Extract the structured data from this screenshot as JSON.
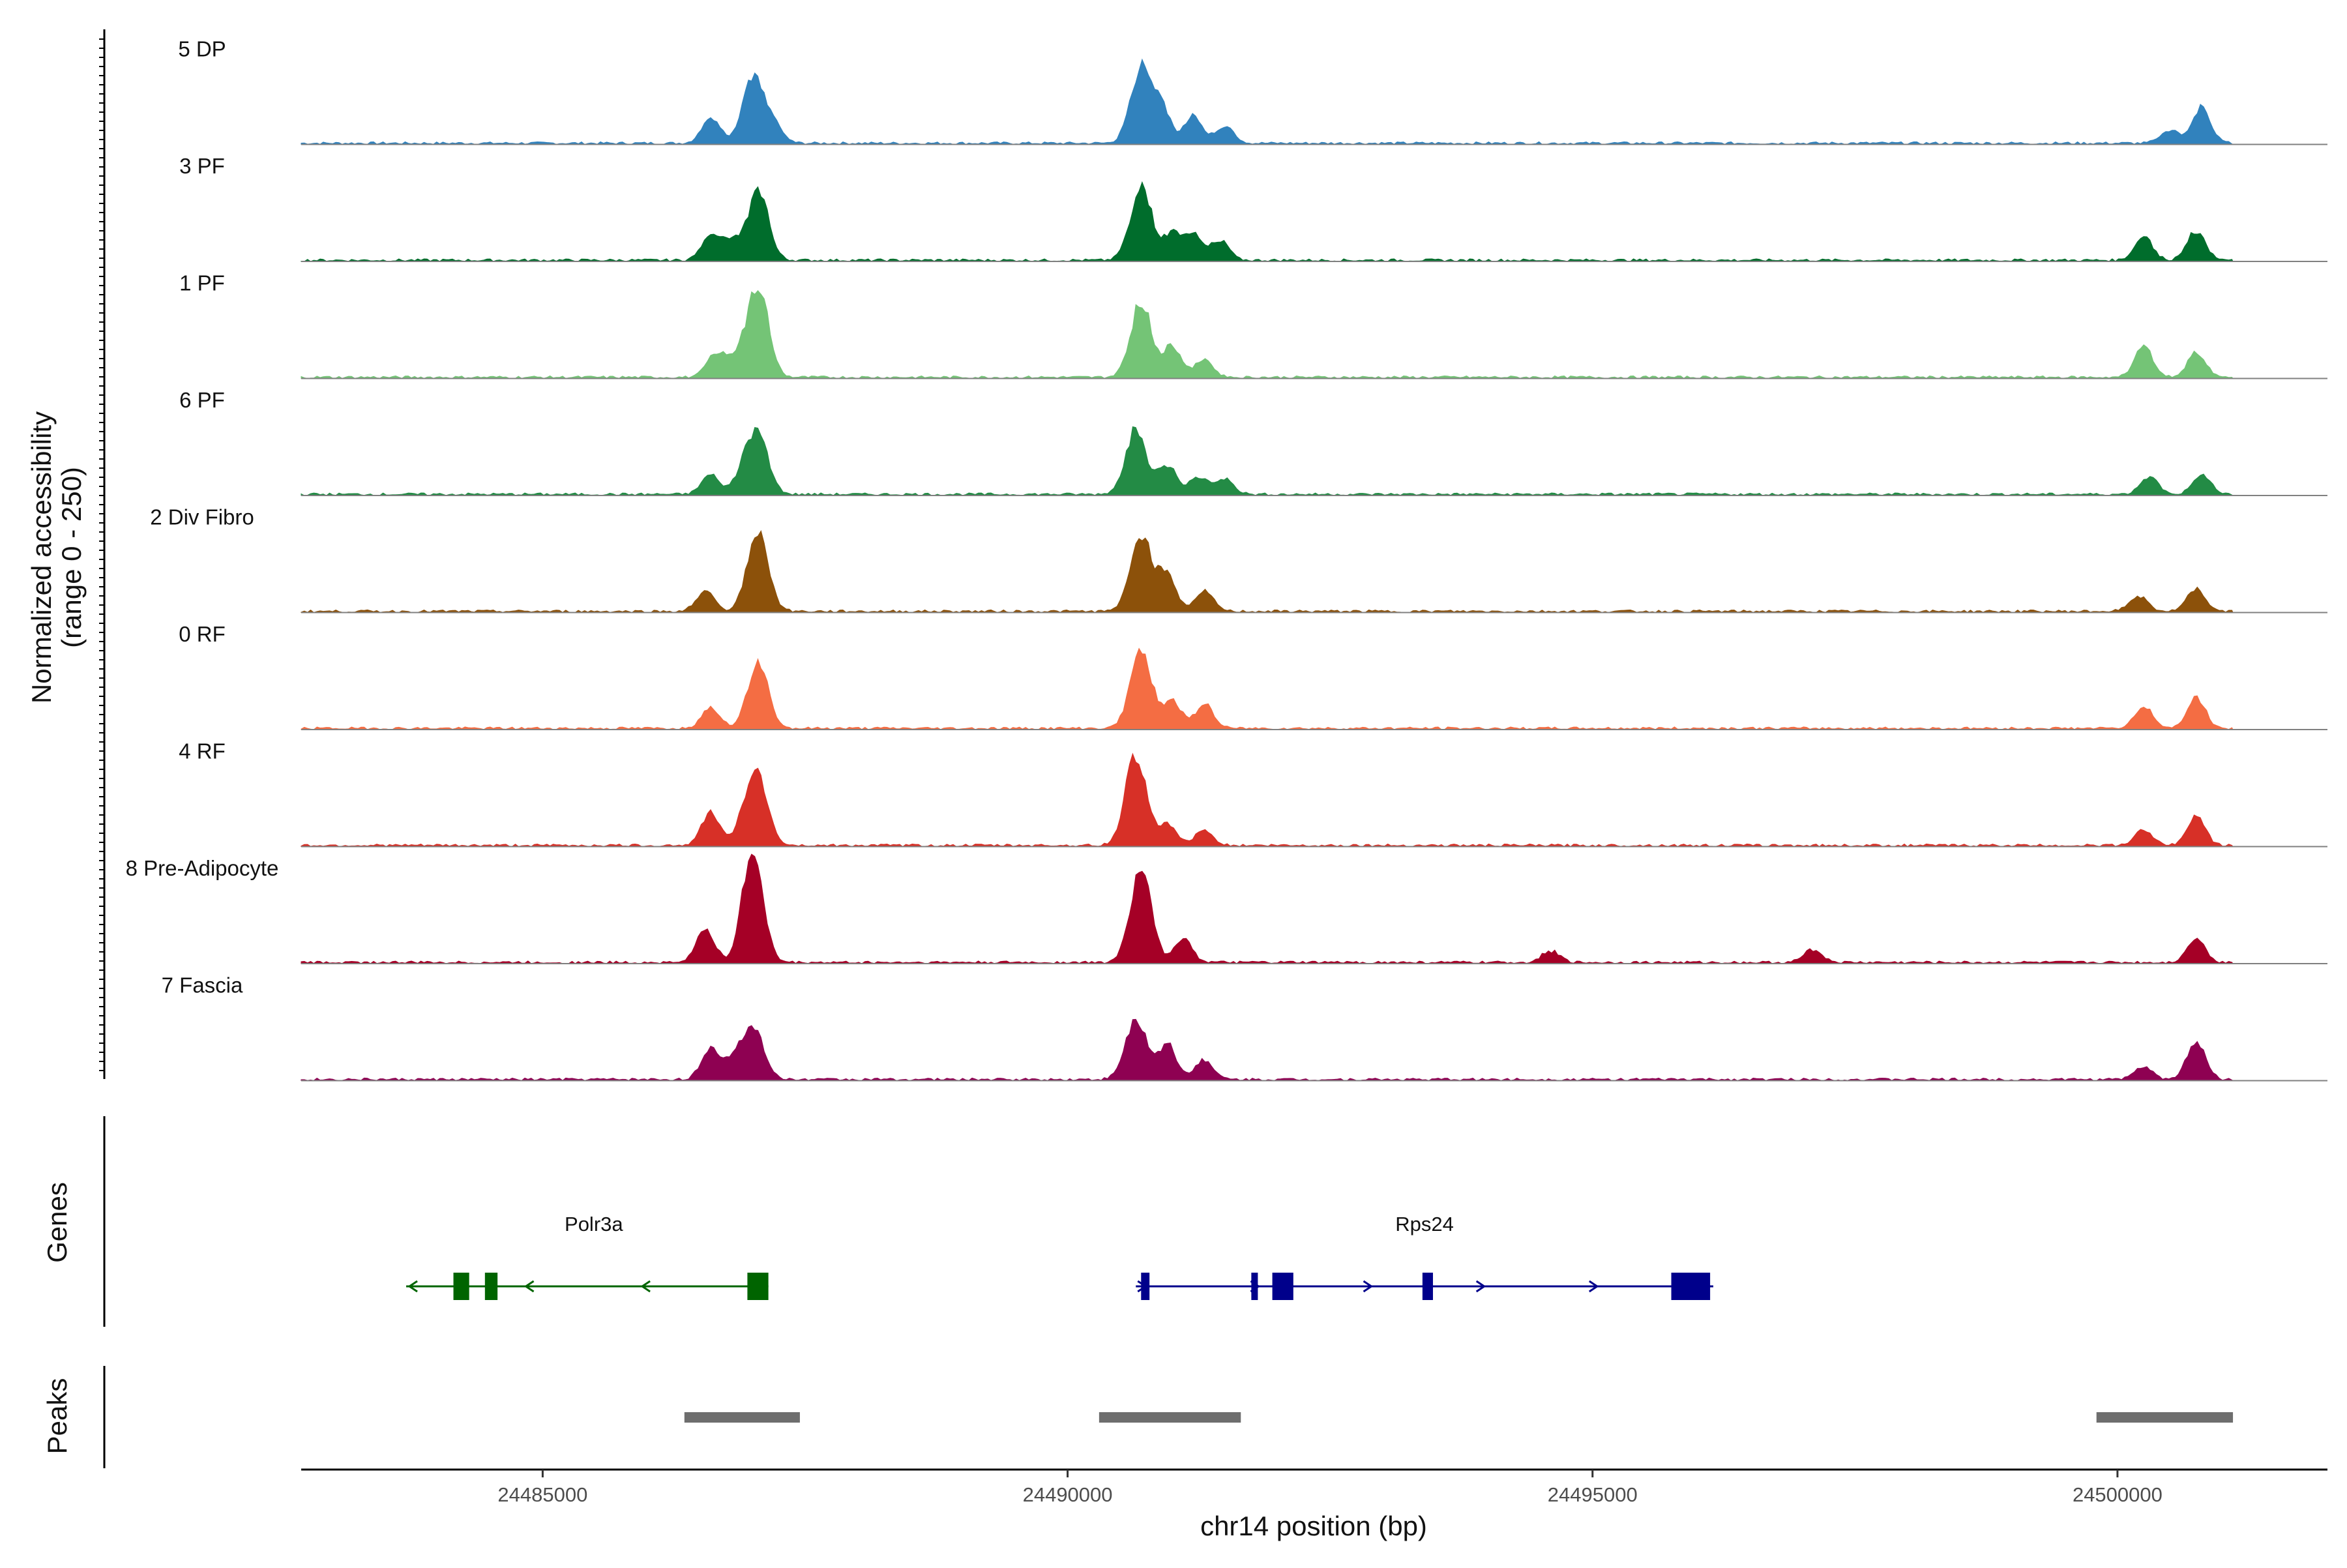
{
  "chart_data": {
    "type": "area",
    "description": "Coverage plot of normalized chromatin accessibility by cell cluster with gene and peak annotation tracks",
    "y_title_line1": "Normalized accessibility",
    "y_title_line2": "(range 0 - 250)",
    "y_range": [
      0,
      250
    ],
    "xlabel": "chr14 position (bp)",
    "xlim": [
      24482700,
      24502000
    ],
    "x_ticks": [
      24485000,
      24490000,
      24495000,
      24500000
    ],
    "x_tick_labels": [
      "24485000",
      "24490000",
      "24495000",
      "24500000"
    ],
    "series": [
      {
        "name": "5 DP",
        "color": "#3182bd",
        "peaks": [
          [
            24486600,
            60
          ],
          [
            24487000,
            150
          ],
          [
            24487200,
            40
          ],
          [
            24490700,
            170
          ],
          [
            24490900,
            80
          ],
          [
            24491200,
            60
          ],
          [
            24491500,
            40
          ],
          [
            24500500,
            30
          ],
          [
            24500800,
            80
          ]
        ]
      },
      {
        "name": "3 PF",
        "color": "#006d2c",
        "peaks": [
          [
            24486600,
            60
          ],
          [
            24486800,
            40
          ],
          [
            24487050,
            155
          ],
          [
            24490700,
            170
          ],
          [
            24491000,
            60
          ],
          [
            24491200,
            55
          ],
          [
            24491450,
            45
          ],
          [
            24500250,
            55
          ],
          [
            24500750,
            65
          ]
        ]
      },
      {
        "name": "1 PF",
        "color": "#74c476",
        "peaks": [
          [
            24486650,
            55
          ],
          [
            24486850,
            40
          ],
          [
            24487050,
            205
          ],
          [
            24490700,
            170
          ],
          [
            24491000,
            70
          ],
          [
            24491300,
            40
          ],
          [
            24500250,
            70
          ],
          [
            24500750,
            55
          ]
        ]
      },
      {
        "name": "6 PF",
        "color": "#238b45",
        "peaks": [
          [
            24486600,
            45
          ],
          [
            24486900,
            40
          ],
          [
            24487050,
            135
          ],
          [
            24490650,
            145
          ],
          [
            24490950,
            65
          ],
          [
            24491250,
            40
          ],
          [
            24491500,
            35
          ],
          [
            24500300,
            40
          ],
          [
            24500800,
            45
          ]
        ]
      },
      {
        "name": "2 Div Fibro",
        "color": "#8c510a",
        "peaks": [
          [
            24486550,
            45
          ],
          [
            24487050,
            180
          ],
          [
            24490700,
            175
          ],
          [
            24490950,
            80
          ],
          [
            24491300,
            45
          ],
          [
            24500200,
            35
          ],
          [
            24500750,
            50
          ]
        ]
      },
      {
        "name": "0 RF",
        "color": "#f46d43",
        "peaks": [
          [
            24486600,
            50
          ],
          [
            24487050,
            145
          ],
          [
            24490700,
            180
          ],
          [
            24491000,
            60
          ],
          [
            24491300,
            55
          ],
          [
            24500250,
            50
          ],
          [
            24500750,
            70
          ]
        ]
      },
      {
        "name": "4 RF",
        "color": "#d73027",
        "peaks": [
          [
            24486600,
            75
          ],
          [
            24486900,
            40
          ],
          [
            24487050,
            150
          ],
          [
            24490650,
            205
          ],
          [
            24490950,
            45
          ],
          [
            24491300,
            35
          ],
          [
            24500250,
            35
          ],
          [
            24500750,
            65
          ]
        ]
      },
      {
        "name": "8 Pre-Adipocyte",
        "color": "#a50026",
        "peaks": [
          [
            24486550,
            75
          ],
          [
            24487000,
            250
          ],
          [
            24490700,
            215
          ],
          [
            24491100,
            55
          ],
          [
            24494600,
            25
          ],
          [
            24497100,
            30
          ],
          [
            24500750,
            55
          ]
        ]
      },
      {
        "name": "7 Fascia",
        "color": "#8e0152",
        "peaks": [
          [
            24486600,
            70
          ],
          [
            24486800,
            40
          ],
          [
            24487000,
            125
          ],
          [
            24490650,
            135
          ],
          [
            24490950,
            80
          ],
          [
            24491300,
            45
          ],
          [
            24500250,
            30
          ],
          [
            24500750,
            85
          ]
        ]
      }
    ],
    "genes_title": "Genes",
    "genes": [
      {
        "name": "Polr3a",
        "strand": "-",
        "start": 24483700,
        "end": 24487150,
        "color": "#006400",
        "exons": [
          [
            24484150,
            24484300
          ],
          [
            24484450,
            24484570
          ],
          [
            24486950,
            24487150
          ]
        ]
      },
      {
        "name": "Rps24",
        "strand": "+",
        "start": 24490650,
        "end": 24496150,
        "color": "#00008b",
        "exons": [
          [
            24490700,
            24490780
          ],
          [
            24491750,
            24491800
          ],
          [
            24491950,
            24492150
          ],
          [
            24493380,
            24493480
          ],
          [
            24495750,
            24496120
          ]
        ]
      }
    ],
    "peaks_title": "Peaks",
    "peak_regions": [
      [
        24486350,
        24487450
      ],
      [
        24490300,
        24491650
      ],
      [
        24499800,
        24501100
      ]
    ],
    "peak_color": "#6e6e6e"
  }
}
